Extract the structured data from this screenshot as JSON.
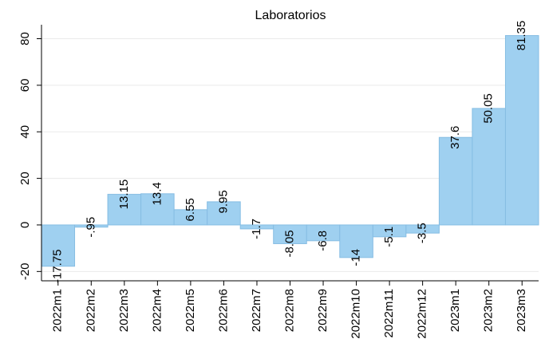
{
  "chart_data": {
    "type": "bar",
    "title": "Laboratorios",
    "categories": [
      "2022m1",
      "2022m2",
      "2022m3",
      "2022m4",
      "2022m5",
      "2022m6",
      "2022m7",
      "2022m8",
      "2022m9",
      "2022m10",
      "2022m11",
      "2022m12",
      "2023m1",
      "2023m2",
      "2023m3"
    ],
    "values": [
      -17.75,
      -0.95,
      13.15,
      13.4,
      6.55,
      9.95,
      -1.7,
      -8.05,
      -6.8,
      -14,
      -5.1,
      -3.5,
      37.6,
      50.05,
      81.35
    ],
    "value_labels": [
      "-17.75",
      "-.95",
      "13.15",
      "13.4",
      "6.55",
      "9.95",
      "-1.7",
      "-8.05",
      "-6.8",
      "-14",
      "-5.1",
      "-3.5",
      "37.6",
      "50.05",
      "81.35"
    ],
    "color": "#9fd0f0",
    "ylim": [
      -24,
      86
    ],
    "yticks": [
      -20,
      0,
      20,
      40,
      60,
      80
    ],
    "grid": true
  }
}
